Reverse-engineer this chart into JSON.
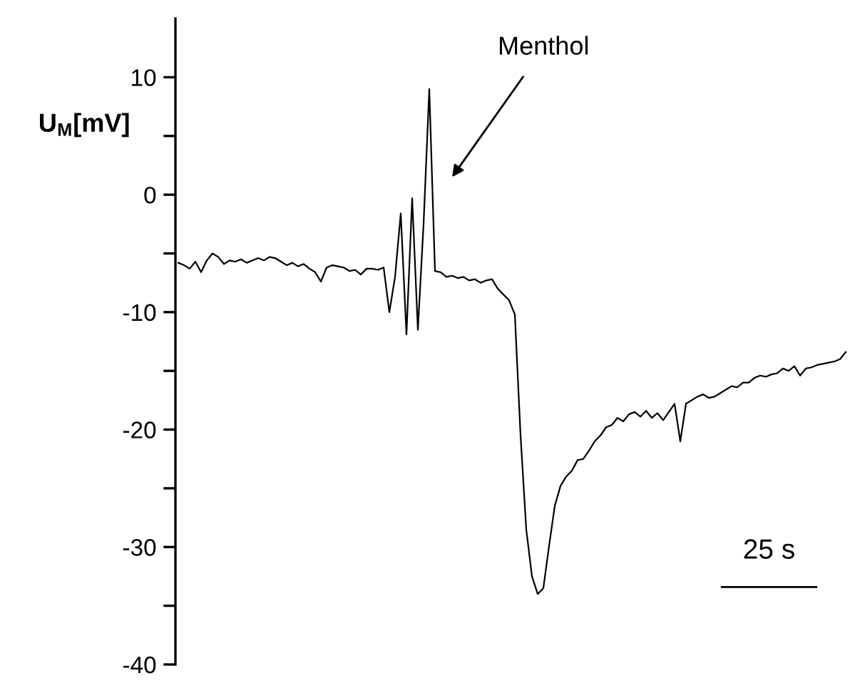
{
  "chart_data": {
    "type": "line",
    "ylabel": "U$_{M}$[mV]",
    "annotations": [
      "Menthol",
      "25 s"
    ],
    "categories": [
      null,
      null,
      null,
      null,
      null,
      null,
      null,
      null,
      null,
      null,
      null,
      null,
      null,
      null,
      null,
      null,
      null,
      null,
      null,
      null,
      null,
      null,
      null,
      null,
      null,
      null,
      null,
      null,
      null,
      null,
      null,
      null,
      null,
      null,
      null,
      null,
      null,
      null,
      null,
      null,
      null,
      null,
      null,
      null,
      null,
      null,
      null,
      null,
      null,
      null,
      null,
      null,
      null,
      null,
      null,
      null,
      null,
      null,
      null,
      null,
      null,
      null,
      null,
      null,
      null,
      null,
      null,
      null,
      null,
      null,
      null,
      null,
      null,
      null,
      null,
      null,
      null,
      null,
      null,
      null,
      null,
      null,
      null,
      null,
      null,
      null,
      null,
      null,
      null,
      null,
      null,
      null,
      null,
      null,
      null,
      null,
      null,
      null,
      null,
      null,
      null,
      null,
      null,
      null,
      null,
      null,
      null,
      null,
      null,
      null,
      null,
      null,
      null,
      null,
      null,
      null,
      null,
      null
    ],
    "series": [
      {
        "color": "#000000",
        "values": [
          -5.8,
          -6.0,
          -6.3,
          -5.7,
          -6.6,
          -5.6,
          -5.0,
          -5.3,
          -5.9,
          -5.6,
          -5.7,
          -5.5,
          -5.8,
          -5.6,
          -5.4,
          -5.6,
          -5.3,
          -5.4,
          -5.7,
          -6.0,
          -5.8,
          -6.1,
          -5.9,
          -6.3,
          -6.6,
          -7.4,
          -6.2,
          -6.0,
          -6.1,
          -6.2,
          -6.5,
          -6.4,
          -6.8,
          -6.3,
          -6.3,
          -6.4,
          -6.2,
          -10.0,
          -7.0,
          -1.6,
          -11.9,
          -0.3,
          -11.5,
          -2.5,
          9.0,
          -6.5,
          -6.6,
          -7.0,
          -6.9,
          -7.1,
          -7.0,
          -7.3,
          -7.2,
          -7.5,
          -7.3,
          -7.2,
          -8.0,
          -8.5,
          -9.0,
          -10.2,
          -20.5,
          -28.5,
          -32.5,
          -34.0,
          -33.5,
          -29.9,
          -26.5,
          -24.8,
          -24.0,
          -23.5,
          -22.6,
          -22.5,
          -21.8,
          -21.0,
          -20.5,
          -19.8,
          -19.6,
          -19.0,
          -19.3,
          -18.7,
          -18.5,
          -18.9,
          -18.4,
          -19.0,
          -18.6,
          -19.2,
          -18.5,
          -17.8,
          -21.0,
          -17.8,
          -17.5,
          -17.2,
          -17.0,
          -17.3,
          -17.2,
          -16.9,
          -16.6,
          -16.3,
          -16.4,
          -16.0,
          -16.0,
          -15.6,
          -15.4,
          -15.5,
          -15.3,
          -15.2,
          -14.8,
          -15.0,
          -14.6,
          -15.4,
          -14.8,
          -14.7,
          -14.5,
          -14.4,
          -14.3,
          -14.2,
          -14.0,
          -13.4
        ]
      }
    ],
    "ylim": [
      -40,
      15
    ],
    "yticks": [
      -40,
      {
        "value": -35,
        "label": null
      },
      -30,
      {
        "value": -25,
        "label": null
      },
      -20,
      {
        "value": -15,
        "label": null
      },
      -10,
      {
        "value": -5,
        "label": null
      },
      0,
      {
        "value": 5,
        "label": null
      },
      10
    ],
    "tick_labels": "y",
    "grid": false,
    "legend": false,
    "line_style": "solid",
    "marker": "none"
  }
}
